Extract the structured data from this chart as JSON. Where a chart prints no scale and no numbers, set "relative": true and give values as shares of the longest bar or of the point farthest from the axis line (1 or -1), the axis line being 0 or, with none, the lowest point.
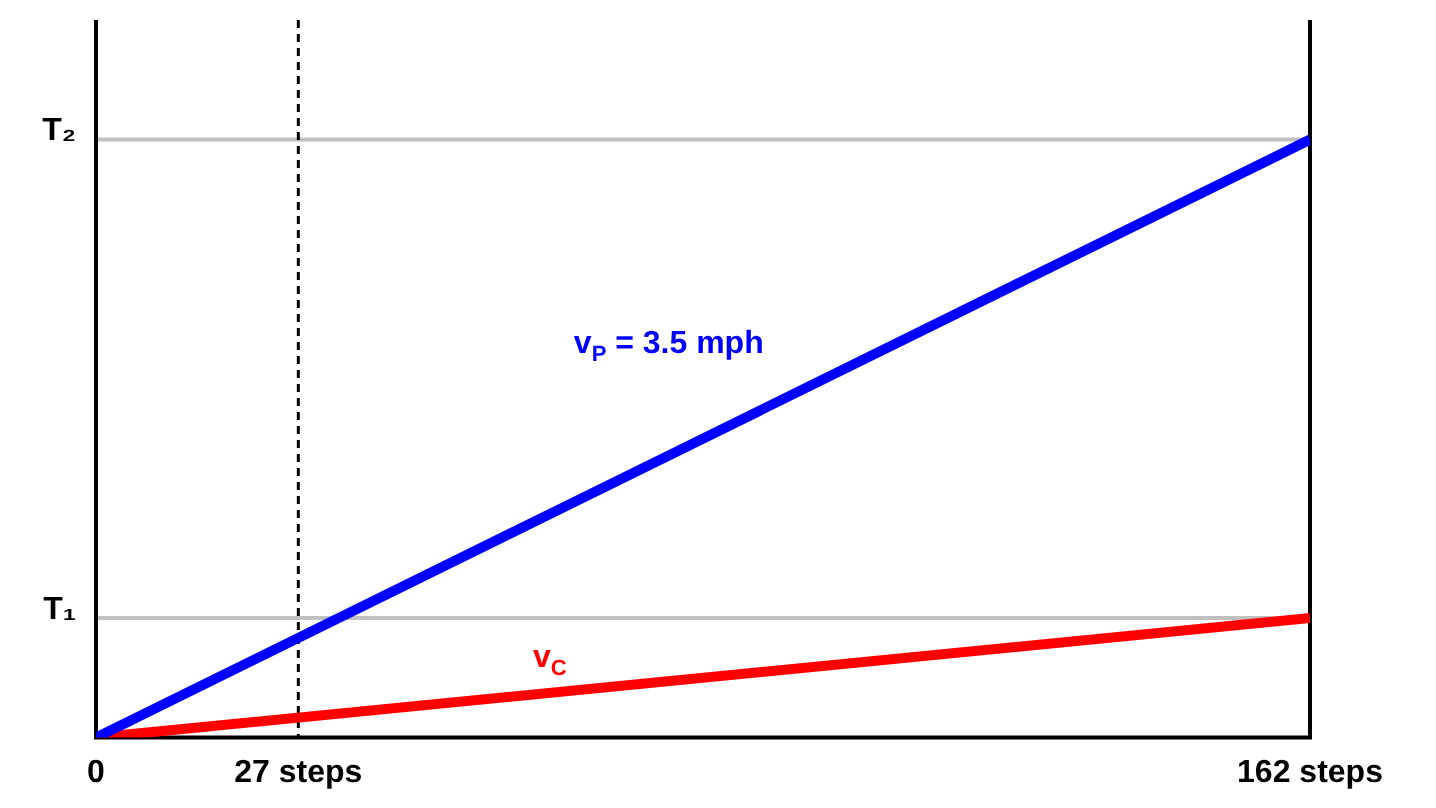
{
  "chart_data": {
    "type": "line",
    "relative": true,
    "x": [
      0,
      162
    ],
    "xlim": [
      0,
      162
    ],
    "xticks": [
      0,
      {
        "value": 27,
        "label": "27 steps"
      },
      {
        "value": 162,
        "label": "162 steps"
      }
    ],
    "series": [
      {
        "name": "v$_{P}$ = 3.5 mph",
        "color": "#0000ff",
        "values": [
          0,
          1
        ]
      },
      {
        "name": "v$_{C}$",
        "color": "#ff0000",
        "values": [
          0,
          0.2
        ]
      }
    ],
    "ref_lines": [
      {
        "axis": "y",
        "value": 0.2,
        "label": "T₁",
        "color": "#c0c0c0"
      },
      {
        "axis": "y",
        "value": 1,
        "label": "T₂",
        "color": "#c0c0c0"
      },
      {
        "axis": "x",
        "value": 27,
        "color": "#000000",
        "line_style": "dashed"
      }
    ],
    "grid": false,
    "legend": false,
    "marker": "none",
    "line_style": "solid"
  }
}
